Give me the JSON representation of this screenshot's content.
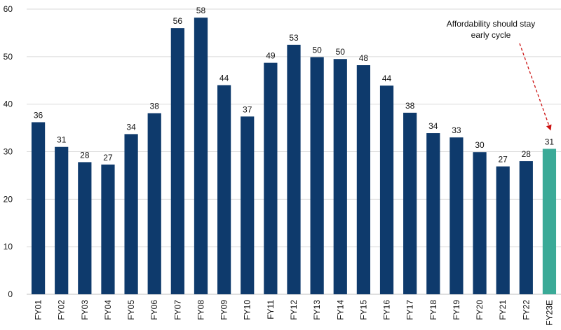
{
  "chart_data": {
    "type": "bar",
    "categories": [
      "FY01",
      "FY02",
      "FY03",
      "FY04",
      "FY05",
      "FY06",
      "FY07",
      "FY08",
      "FY09",
      "FY10",
      "FY11",
      "FY12",
      "FY13",
      "FY14",
      "FY15",
      "FY16",
      "FY17",
      "FY18",
      "FY19",
      "FY20",
      "FY21",
      "FY22",
      "FY23E"
    ],
    "values": [
      36.2,
      31,
      27.8,
      27.3,
      33.7,
      38.1,
      56,
      58.2,
      44,
      37.4,
      48.7,
      52.5,
      49.9,
      49.5,
      48.2,
      43.9,
      38.2,
      33.9,
      33,
      29.9,
      26.9,
      28,
      30.6
    ],
    "data_labels": [
      "36",
      "31",
      "28",
      "27",
      "34",
      "38",
      "56",
      "58",
      "44",
      "37",
      "49",
      "53",
      "50",
      "50",
      "48",
      "44",
      "38",
      "34",
      "33",
      "30",
      "27",
      "28",
      "31"
    ],
    "ylim": [
      0,
      60
    ],
    "yticks": [
      "0",
      "10",
      "20",
      "30",
      "40",
      "50",
      "60"
    ],
    "grid": true,
    "colors": {
      "bar": "#0e3a6c",
      "highlight": "#3aaa97",
      "arrow": "#cc1111",
      "grid": "#d9d9d9"
    },
    "highlight_index": 22,
    "annotation": {
      "lines": [
        "Affordability should stay",
        "early cycle"
      ],
      "target_category": "FY23E"
    }
  }
}
